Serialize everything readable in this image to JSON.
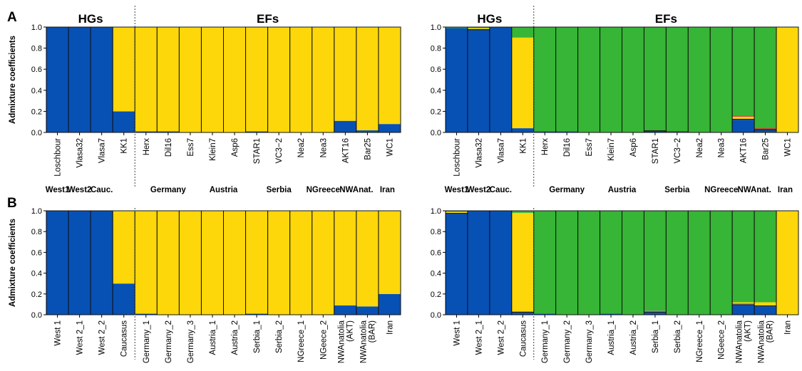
{
  "figure": {
    "panel_labels": [
      "A",
      "B"
    ],
    "colors": {
      "blue": "#0751b5",
      "yellow": "#fdd709",
      "green": "#36b536",
      "red": "#c4302b",
      "dark": "#1a1a1a",
      "grey": "#8a8a8a"
    }
  },
  "chart_data": [
    {
      "type": "bar",
      "stacked": true,
      "panel": "A",
      "ylabel": "Admixture coefficients",
      "ylim": [
        0,
        1
      ],
      "yticks": [
        "0.0",
        "0.2",
        "0.4",
        "0.6",
        "0.8",
        "1.0"
      ],
      "group_headers": [
        "HGs",
        "EFs"
      ],
      "categories": [
        "Loschbour",
        "Vlasa32",
        "Vlasa7",
        "KK1",
        "Herx",
        "Dil16",
        "Ess7",
        "Klein7",
        "Asp6",
        "STAR1",
        "VC3−2",
        "Nea2",
        "Nea3",
        "AKT16",
        "Bar25",
        "WC1"
      ],
      "populations": [
        "West1",
        "West2",
        "Cauc.",
        "Germany",
        "Austria",
        "Serbia",
        "NGreece",
        "NWAnat.",
        "Iran"
      ],
      "series": [
        {
          "color": "blue",
          "values": [
            1.0,
            1.0,
            1.0,
            0.2,
            0.01,
            0.01,
            0,
            0,
            0,
            0.01,
            0,
            0,
            0,
            0.11,
            0.02,
            0.08
          ]
        },
        {
          "color": "yellow",
          "values": [
            0,
            0,
            0,
            0.8,
            0.99,
            0.99,
            1.0,
            1.0,
            1.0,
            0.99,
            1.0,
            1.0,
            1.0,
            0.89,
            0.98,
            0.92
          ]
        }
      ]
    },
    {
      "type": "bar",
      "stacked": true,
      "panel": "A",
      "ylim": [
        0,
        1
      ],
      "yticks": [
        "0.0",
        "0.2",
        "0.4",
        "0.6",
        "0.8",
        "1.0"
      ],
      "group_headers": [
        "HGs",
        "EFs"
      ],
      "categories": [
        "Loschbour",
        "Vlasa32",
        "Vlasa7",
        "KK1",
        "Herx",
        "Dil16",
        "Ess7",
        "Klein7",
        "Asp6",
        "STAR1",
        "VC3−2",
        "Nea2",
        "Nea3",
        "AKT16",
        "Bar25",
        "WC1"
      ],
      "populations": [
        "West1",
        "West2",
        "Cauc.",
        "Germany",
        "Austria",
        "Serbia",
        "NGreece",
        "NWAnat.",
        "Iran"
      ],
      "series": [
        {
          "color": "blue",
          "values": [
            0.99,
            0.97,
            1.0,
            0.04,
            0.01,
            0.01,
            0,
            0,
            0,
            0.01,
            0.005,
            0,
            0,
            0.12,
            0.02,
            0
          ]
        },
        {
          "color": "dark",
          "values": [
            0,
            0.01,
            0,
            0,
            0,
            0,
            0,
            0,
            0,
            0.01,
            0.005,
            0,
            0.005,
            0.01,
            0.01,
            0
          ]
        },
        {
          "color": "yellow",
          "values": [
            0,
            0.01,
            0,
            0.86,
            0,
            0,
            0,
            0,
            0,
            0,
            0,
            0,
            0,
            0.02,
            0,
            1.0
          ]
        },
        {
          "color": "red",
          "values": [
            0,
            0,
            0,
            0,
            0,
            0,
            0,
            0,
            0,
            0,
            0,
            0,
            0,
            0.01,
            0.01,
            0
          ]
        },
        {
          "color": "green",
          "values": [
            0.01,
            0.01,
            0,
            0.1,
            0.99,
            0.99,
            1.0,
            1.0,
            1.0,
            0.98,
            0.99,
            1.0,
            0.995,
            0.84,
            0.96,
            0
          ]
        }
      ]
    },
    {
      "type": "bar",
      "stacked": true,
      "panel": "B",
      "ylabel": "Admixture coefficients",
      "ylim": [
        0,
        1
      ],
      "yticks": [
        "0.0",
        "0.2",
        "0.4",
        "0.6",
        "0.8",
        "1.0"
      ],
      "categories": [
        "West 1",
        "West 2_1",
        "West 2_2",
        "Caucasus",
        "Germany_1",
        "Germany_2",
        "Germany_3",
        "Austria_1",
        "Austria_2",
        "Serbia_1",
        "Serbia_2",
        "NGreece_1",
        "NGeece_2",
        "NWAnatolia\n(AKT)",
        "NWAnatolia\n(BAR)",
        "Iran"
      ],
      "series": [
        {
          "color": "blue",
          "values": [
            1.0,
            1.0,
            1.0,
            0.3,
            0.01,
            0,
            0,
            0,
            0,
            0.01,
            0,
            0,
            0,
            0.09,
            0.08,
            0.2
          ]
        },
        {
          "color": "yellow",
          "values": [
            0,
            0,
            0,
            0.7,
            0.99,
            1.0,
            1.0,
            1.0,
            1.0,
            0.99,
            1.0,
            1.0,
            1.0,
            0.91,
            0.92,
            0.8
          ]
        }
      ]
    },
    {
      "type": "bar",
      "stacked": true,
      "panel": "B",
      "ylim": [
        0,
        1
      ],
      "yticks": [
        "0.0",
        "0.2",
        "0.4",
        "0.6",
        "0.8",
        "1.0"
      ],
      "categories": [
        "West 1",
        "West 2_1",
        "West 2_2",
        "Caucasus",
        "Germany_1",
        "Germany_2",
        "Germany_3",
        "Austria_1",
        "Austria_2",
        "Serbia_1",
        "Serbia_2",
        "NGreece_1",
        "NGeece_2",
        "NWAnatolia\n(AKT)",
        "NWAnatolia\n(BAR)",
        "Iran"
      ],
      "series": [
        {
          "color": "blue",
          "values": [
            0.97,
            1.0,
            1.0,
            0.02,
            0.01,
            0,
            0,
            0.01,
            0,
            0.02,
            0,
            0,
            0,
            0.09,
            0.08,
            0
          ]
        },
        {
          "color": "dark",
          "values": [
            0.01,
            0,
            0,
            0.01,
            0,
            0,
            0,
            0,
            0,
            0.01,
            0,
            0,
            0,
            0.01,
            0.01,
            0
          ]
        },
        {
          "color": "grey",
          "values": [
            0,
            0,
            0,
            0,
            0,
            0,
            0,
            0,
            0,
            0.01,
            0,
            0,
            0,
            0.01,
            0,
            0
          ]
        },
        {
          "color": "yellow",
          "values": [
            0.01,
            0,
            0,
            0.95,
            0,
            0,
            0,
            0,
            0,
            0,
            0,
            0,
            0,
            0.01,
            0.03,
            1.0
          ]
        },
        {
          "color": "green",
          "values": [
            0.01,
            0,
            0,
            0.02,
            0.99,
            1.0,
            1.0,
            0.99,
            1.0,
            0.96,
            1.0,
            1.0,
            1.0,
            0.88,
            0.88,
            0
          ]
        }
      ]
    }
  ]
}
